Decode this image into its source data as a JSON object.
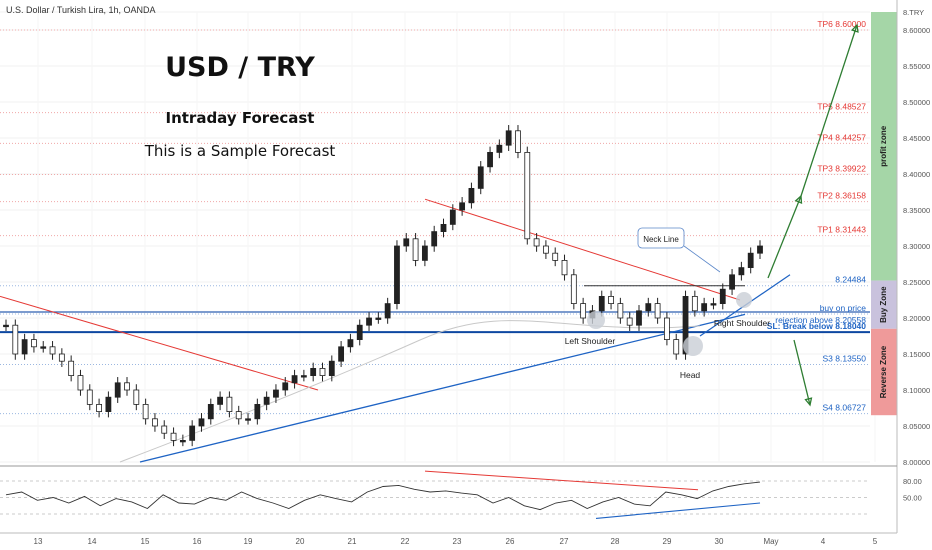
{
  "header": {
    "symbol_text": "U.S. Dollar / Turkish Lira, 1h, OANDA"
  },
  "titles": {
    "main": "USD / TRY",
    "sub": "Intraday Forecast",
    "sample": "This is a Sample Forecast"
  },
  "colors": {
    "bullish_candle": "#222222",
    "bearish_candle": "#ffffff",
    "trend_red": "#e53935",
    "trend_blue": "#1e63c4",
    "profit_zone": "#a5d6a7",
    "buy_zone": "#c9c2dd",
    "reverse_zone": "#ef9a9a",
    "arrow_green": "#2e7d32",
    "tp_text": "#e53935",
    "blue_text": "#1e63c4"
  },
  "chart_data": [
    {
      "type": "line",
      "title": "U.S. Dollar / Turkish Lira, 1h, OANDA",
      "x_ticks": [
        "13",
        "14",
        "15",
        "16",
        "19",
        "20",
        "21",
        "22",
        "23",
        "26",
        "27",
        "28",
        "29",
        "30",
        "May",
        "4",
        "5"
      ],
      "y_ticks": [
        "8.TRY",
        "8.60000",
        "8.55000",
        "8.50000",
        "8.45000",
        "8.40000",
        "8.35000",
        "8.30000",
        "8.25000",
        "8.20000",
        "8.15000",
        "8.10000",
        "8.05000",
        "8.00000"
      ],
      "ylim": [
        8.0,
        8.625
      ],
      "series": [
        {
          "values": [
            8.19,
            8.15,
            8.17,
            8.16,
            8.16,
            8.15,
            8.14,
            8.12,
            8.1,
            8.08,
            8.07,
            8.09,
            8.11,
            8.1,
            8.08,
            8.06,
            8.05,
            8.04,
            8.03,
            8.03,
            8.05,
            8.06,
            8.08,
            8.09,
            8.07,
            8.06,
            8.06,
            8.08,
            8.09,
            8.1,
            8.11,
            8.12,
            8.12,
            8.13,
            8.12,
            8.14,
            8.16,
            8.17,
            8.19,
            8.2,
            8.2,
            8.22,
            8.3,
            8.31,
            8.28,
            8.3,
            8.32,
            8.33,
            8.35,
            8.36,
            8.38,
            8.41,
            8.43,
            8.44,
            8.46,
            8.43,
            8.31,
            8.3,
            8.29,
            8.28,
            8.26,
            8.22,
            8.2,
            8.21,
            8.23,
            8.22,
            8.2,
            8.19,
            8.21,
            8.22,
            8.2,
            8.17,
            8.15,
            8.23,
            8.21,
            8.22,
            8.22,
            8.24,
            8.26,
            8.27,
            8.29,
            8.3
          ]
        }
      ],
      "levels": [
        {
          "label": "TP6 8.60000",
          "value": 8.6,
          "kind": "tp"
        },
        {
          "label": "TP5 8.48527",
          "value": 8.48527,
          "kind": "tp"
        },
        {
          "label": "TP4 8.44257",
          "value": 8.44257,
          "kind": "tp"
        },
        {
          "label": "TP3 8.39922",
          "value": 8.39922,
          "kind": "tp"
        },
        {
          "label": "TP2 8.36158",
          "value": 8.36158,
          "kind": "tp"
        },
        {
          "label": "TP1 8.31443",
          "value": 8.31443,
          "kind": "tp"
        },
        {
          "label": "8.24484",
          "value": 8.24484,
          "kind": "info"
        },
        {
          "label": "buy on price",
          "value": 8.2083,
          "kind": "info"
        },
        {
          "label": "rejection above 8.20558",
          "value": 8.20558,
          "kind": "info"
        },
        {
          "label": "SL: Break below 8.18040",
          "value": 8.1804,
          "kind": "sl"
        },
        {
          "label": "S3 8.13550",
          "value": 8.1355,
          "kind": "support"
        },
        {
          "label": "S4 8.06727",
          "value": 8.06727,
          "kind": "support"
        }
      ],
      "annotations": [
        "Neck Line",
        "Left Shoulder",
        "Head",
        "Right Shoulder"
      ],
      "zones": [
        "profit zone",
        "Buy Zone",
        "Reverse Zone"
      ]
    },
    {
      "type": "line",
      "title": "",
      "y_ticks": [
        "80.00",
        "50.00"
      ],
      "ylim": [
        0,
        100
      ],
      "series": [
        {
          "values": [
            55,
            60,
            45,
            50,
            40,
            52,
            35,
            48,
            42,
            30,
            55,
            40,
            38,
            50,
            45,
            60,
            48,
            40,
            30,
            45,
            55,
            48,
            42,
            60,
            70,
            72,
            65,
            60,
            62,
            58,
            55,
            40,
            50,
            35,
            28,
            40,
            45,
            30,
            42,
            50,
            38,
            35,
            60,
            55,
            48,
            62,
            70,
            75,
            78
          ]
        }
      ]
    }
  ]
}
